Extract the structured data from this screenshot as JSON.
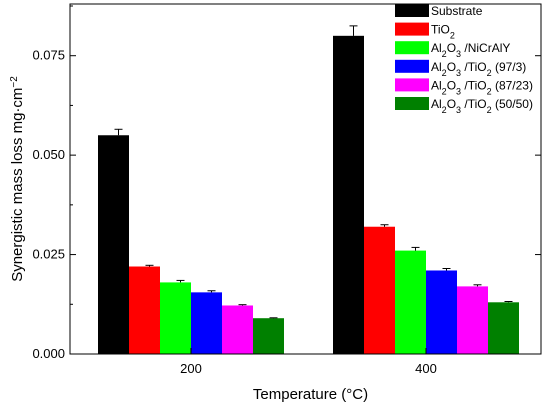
{
  "chart_data": {
    "type": "bar",
    "title": "",
    "xlabel": "Temperature (°C)",
    "ylabel": "Synergistic mass loss  mg·cm",
    "ylabel_superscript": "−2",
    "categories": [
      "200",
      "400"
    ],
    "ylim": [
      0,
      0.088
    ],
    "yticks": [
      0.0,
      0.025,
      0.05,
      0.075
    ],
    "ytick_labels": [
      "0.000",
      "0.025",
      "0.050",
      "0.075"
    ],
    "grid": false,
    "legend_position": "top-right",
    "series": [
      {
        "name": "Substrate",
        "color": "#000000",
        "values": [
          0.055,
          0.08
        ],
        "errors": [
          0.0015,
          0.0025
        ]
      },
      {
        "name": "TiO2",
        "name_parts": [
          [
            "TiO",
            ""
          ],
          [
            "2",
            "sub"
          ]
        ],
        "color": "#ff0000",
        "values": [
          0.022,
          0.032
        ],
        "errors": [
          0.0003,
          0.0005
        ]
      },
      {
        "name": "Al2O3 /NiCrAlY",
        "name_parts": [
          [
            "Al",
            ""
          ],
          [
            "2",
            "sub"
          ],
          [
            "O",
            ""
          ],
          [
            "3",
            "sub"
          ],
          [
            " /NiCrAlY",
            ""
          ]
        ],
        "color": "#00ff00",
        "values": [
          0.018,
          0.026
        ],
        "errors": [
          0.0005,
          0.0008
        ]
      },
      {
        "name": "Al2O3 /TiO2 (97/3)",
        "name_parts": [
          [
            "Al",
            ""
          ],
          [
            "2",
            "sub"
          ],
          [
            "O",
            ""
          ],
          [
            "3",
            "sub"
          ],
          [
            " /TiO",
            ""
          ],
          [
            "2",
            "sub"
          ],
          [
            " (97/3)",
            ""
          ]
        ],
        "color": "#0000ff",
        "values": [
          0.0155,
          0.021
        ],
        "errors": [
          0.0004,
          0.0005
        ]
      },
      {
        "name": "Al2O3 /TiO2 (87/23)",
        "name_parts": [
          [
            "Al",
            ""
          ],
          [
            "2",
            "sub"
          ],
          [
            "O",
            ""
          ],
          [
            "3",
            "sub"
          ],
          [
            " /TiO",
            ""
          ],
          [
            "2",
            "sub"
          ],
          [
            " (87/23)",
            ""
          ]
        ],
        "color": "#ff00ff",
        "values": [
          0.0122,
          0.017
        ],
        "errors": [
          0.0002,
          0.0004
        ]
      },
      {
        "name": "Al2O3 /TiO2 (50/50)",
        "name_parts": [
          [
            "Al",
            ""
          ],
          [
            "2",
            "sub"
          ],
          [
            "O",
            ""
          ],
          [
            "3",
            "sub"
          ],
          [
            " /TiO",
            ""
          ],
          [
            "2",
            "sub"
          ],
          [
            " (50/50)",
            ""
          ]
        ],
        "color": "#008000",
        "values": [
          0.009,
          0.013
        ],
        "errors": [
          0.0001,
          0.0002
        ]
      }
    ]
  }
}
